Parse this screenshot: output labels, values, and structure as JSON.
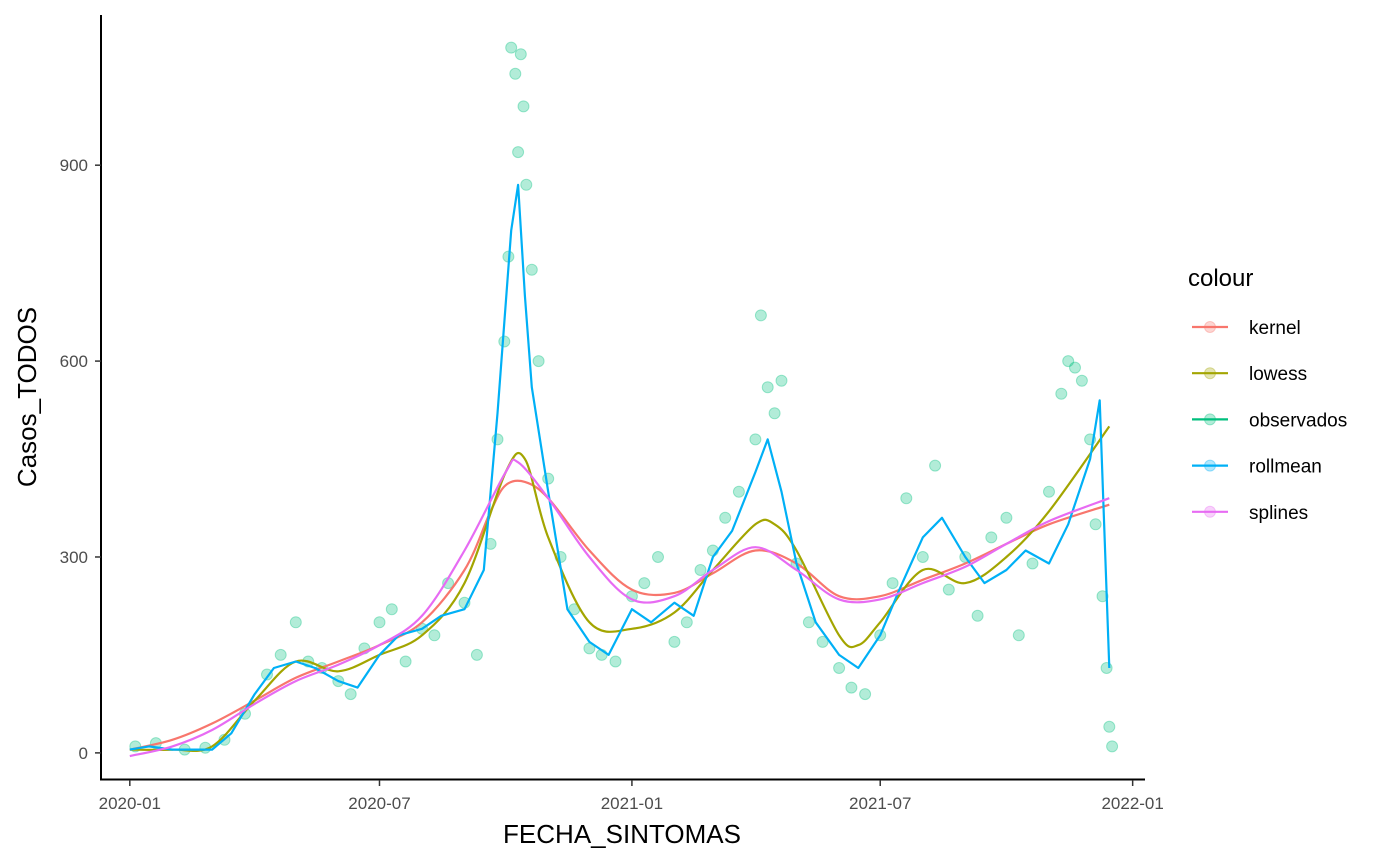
{
  "chart_data": {
    "type": "line",
    "xlabel": "FECHA_SINTOMAS",
    "ylabel": "Casos_TODOS",
    "x_domain": [
      "2019-12-11",
      "2022-01-10"
    ],
    "ylim": [
      -40,
      1130
    ],
    "x_ticks": [
      {
        "date": "2020-01-01",
        "label": "2020-01"
      },
      {
        "date": "2020-07-01",
        "label": "2020-07"
      },
      {
        "date": "2021-01-01",
        "label": "2021-01"
      },
      {
        "date": "2021-07-01",
        "label": "2021-07"
      },
      {
        "date": "2022-01-01",
        "label": "2022-01"
      }
    ],
    "y_ticks": [
      0,
      300,
      600,
      900
    ],
    "grid": false,
    "legend": {
      "title": "colour",
      "position": "right",
      "entries": [
        {
          "name": "kernel",
          "color": "#F8766D"
        },
        {
          "name": "lowess",
          "color": "#A3A500"
        },
        {
          "name": "observados",
          "color": "#00BF7D"
        },
        {
          "name": "rollmean",
          "color": "#00B0F6"
        },
        {
          "name": "splines",
          "color": "#E76BF3"
        }
      ]
    },
    "series": [
      {
        "name": "kernel",
        "color": "#F8766D",
        "x": [
          "2020-01-01",
          "2020-02-01",
          "2020-03-01",
          "2020-04-01",
          "2020-05-01",
          "2020-06-01",
          "2020-07-01",
          "2020-08-01",
          "2020-09-01",
          "2020-09-20",
          "2020-10-01",
          "2020-10-15",
          "2020-11-01",
          "2020-12-01",
          "2021-01-01",
          "2021-02-01",
          "2021-03-01",
          "2021-04-01",
          "2021-05-01",
          "2021-06-01",
          "2021-07-01",
          "2021-08-01",
          "2021-09-01",
          "2021-10-01",
          "2021-11-01",
          "2021-12-15"
        ],
        "y": [
          5,
          20,
          45,
          80,
          115,
          140,
          165,
          200,
          280,
          370,
          410,
          415,
          390,
          310,
          250,
          245,
          275,
          310,
          290,
          240,
          240,
          265,
          290,
          320,
          350,
          380
        ]
      },
      {
        "name": "lowess",
        "color": "#A3A500",
        "x": [
          "2020-01-01",
          "2020-02-01",
          "2020-03-01",
          "2020-04-01",
          "2020-05-01",
          "2020-06-01",
          "2020-07-01",
          "2020-08-01",
          "2020-09-01",
          "2020-10-01",
          "2020-10-15",
          "2020-11-01",
          "2020-12-01",
          "2021-01-01",
          "2021-02-01",
          "2021-03-01",
          "2021-04-01",
          "2021-04-15",
          "2021-05-01",
          "2021-06-01",
          "2021-06-15",
          "2021-07-01",
          "2021-08-01",
          "2021-09-01",
          "2021-10-01",
          "2021-11-01",
          "2021-12-15"
        ],
        "y": [
          5,
          5,
          10,
          80,
          140,
          125,
          150,
          180,
          260,
          430,
          450,
          330,
          200,
          190,
          215,
          280,
          350,
          350,
          310,
          180,
          165,
          200,
          280,
          260,
          300,
          370,
          500
        ]
      },
      {
        "name": "rollmean",
        "color": "#00B0F6",
        "x": [
          "2020-01-01",
          "2020-01-15",
          "2020-02-01",
          "2020-02-15",
          "2020-03-01",
          "2020-03-15",
          "2020-04-01",
          "2020-04-15",
          "2020-05-01",
          "2020-05-15",
          "2020-06-01",
          "2020-06-15",
          "2020-07-01",
          "2020-07-15",
          "2020-08-01",
          "2020-08-15",
          "2020-09-01",
          "2020-09-15",
          "2020-09-25",
          "2020-10-05",
          "2020-10-10",
          "2020-10-15",
          "2020-10-20",
          "2020-11-01",
          "2020-11-15",
          "2020-12-01",
          "2020-12-15",
          "2021-01-01",
          "2021-01-15",
          "2021-02-01",
          "2021-02-15",
          "2021-03-01",
          "2021-03-15",
          "2021-04-01",
          "2021-04-10",
          "2021-04-20",
          "2021-05-01",
          "2021-05-15",
          "2021-06-01",
          "2021-06-15",
          "2021-07-01",
          "2021-07-15",
          "2021-08-01",
          "2021-08-15",
          "2021-09-01",
          "2021-09-15",
          "2021-10-01",
          "2021-10-15",
          "2021-11-01",
          "2021-11-15",
          "2021-12-01",
          "2021-12-08",
          "2021-12-15"
        ],
        "y": [
          5,
          10,
          5,
          5,
          5,
          30,
          90,
          130,
          140,
          130,
          110,
          100,
          150,
          180,
          190,
          210,
          220,
          280,
          520,
          800,
          870,
          700,
          560,
          400,
          220,
          170,
          150,
          220,
          200,
          230,
          210,
          300,
          340,
          430,
          480,
          400,
          290,
          200,
          150,
          130,
          180,
          250,
          330,
          360,
          300,
          260,
          280,
          310,
          290,
          350,
          450,
          540,
          130
        ]
      },
      {
        "name": "splines",
        "color": "#E76BF3",
        "x": [
          "2020-01-01",
          "2020-02-01",
          "2020-03-01",
          "2020-04-01",
          "2020-05-01",
          "2020-06-01",
          "2020-07-01",
          "2020-08-01",
          "2020-09-01",
          "2020-10-01",
          "2020-10-10",
          "2020-11-01",
          "2020-12-01",
          "2021-01-01",
          "2021-02-01",
          "2021-03-01",
          "2021-04-01",
          "2021-05-01",
          "2021-06-01",
          "2021-07-01",
          "2021-08-01",
          "2021-09-01",
          "2021-10-01",
          "2021-11-01",
          "2021-12-15"
        ],
        "y": [
          -5,
          10,
          35,
          75,
          110,
          135,
          165,
          210,
          310,
          430,
          445,
          390,
          300,
          235,
          240,
          280,
          315,
          280,
          235,
          235,
          260,
          285,
          320,
          355,
          390
        ]
      },
      {
        "name": "observados",
        "color": "#00BF7D",
        "x": [
          "2020-01-05",
          "2020-01-20",
          "2020-02-10",
          "2020-02-25",
          "2020-03-10",
          "2020-03-25",
          "2020-04-10",
          "2020-04-20",
          "2020-05-01",
          "2020-05-10",
          "2020-05-20",
          "2020-06-01",
          "2020-06-10",
          "2020-06-20",
          "2020-07-01",
          "2020-07-10",
          "2020-07-20",
          "2020-08-01",
          "2020-08-10",
          "2020-08-20",
          "2020-09-01",
          "2020-09-10",
          "2020-09-20",
          "2020-09-25",
          "2020-09-30",
          "2020-10-03",
          "2020-10-05",
          "2020-10-08",
          "2020-10-10",
          "2020-10-12",
          "2020-10-14",
          "2020-10-16",
          "2020-10-20",
          "2020-10-25",
          "2020-11-01",
          "2020-11-10",
          "2020-11-20",
          "2020-12-01",
          "2020-12-10",
          "2020-12-20",
          "2021-01-01",
          "2021-01-10",
          "2021-01-20",
          "2021-02-01",
          "2021-02-10",
          "2021-02-20",
          "2021-03-01",
          "2021-03-10",
          "2021-03-20",
          "2021-04-01",
          "2021-04-05",
          "2021-04-10",
          "2021-04-15",
          "2021-04-20",
          "2021-05-01",
          "2021-05-10",
          "2021-05-20",
          "2021-06-01",
          "2021-06-10",
          "2021-06-20",
          "2021-07-01",
          "2021-07-10",
          "2021-07-20",
          "2021-08-01",
          "2021-08-10",
          "2021-08-20",
          "2021-09-01",
          "2021-09-10",
          "2021-09-20",
          "2021-10-01",
          "2021-10-10",
          "2021-10-20",
          "2021-11-01",
          "2021-11-10",
          "2021-11-15",
          "2021-11-20",
          "2021-11-25",
          "2021-12-01",
          "2021-12-05",
          "2021-12-10",
          "2021-12-13",
          "2021-12-15",
          "2021-12-17"
        ],
        "y": [
          10,
          15,
          5,
          8,
          20,
          60,
          120,
          150,
          200,
          140,
          130,
          110,
          90,
          160,
          200,
          220,
          140,
          190,
          180,
          260,
          230,
          150,
          320,
          480,
          630,
          760,
          1080,
          1040,
          920,
          1070,
          990,
          870,
          740,
          600,
          420,
          300,
          220,
          160,
          150,
          140,
          240,
          260,
          300,
          170,
          200,
          280,
          310,
          360,
          400,
          480,
          670,
          560,
          520,
          570,
          290,
          200,
          170,
          130,
          100,
          90,
          180,
          260,
          390,
          300,
          440,
          250,
          300,
          210,
          330,
          360,
          180,
          290,
          400,
          550,
          600,
          590,
          570,
          480,
          350,
          240,
          130,
          40,
          10
        ]
      }
    ]
  }
}
